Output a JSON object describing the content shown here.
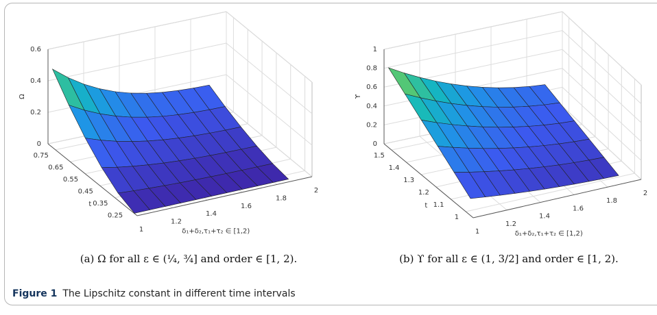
{
  "panels": [
    {
      "z_label": "Ω",
      "t_label": "t",
      "x_label": "δ₁+δ₂,τ₁+τ₂ ∈ [1,2)",
      "zlim": [
        0,
        0.6
      ],
      "tlim": [
        0.8,
        0.2
      ],
      "xlim": [
        1,
        2
      ],
      "zticks": [
        0,
        0.2,
        0.4,
        0.6
      ],
      "tticks": [
        0.75,
        0.65,
        0.55,
        0.45,
        0.35,
        0.25
      ],
      "xticks": [
        1,
        1.2,
        1.4,
        1.6,
        1.8,
        2
      ],
      "caption": "(a) Ω for all ε ∈ (¼, ¾] and order ∈ [1, 2)."
    },
    {
      "z_label": "ϒ",
      "t_label": "t",
      "x_label": "δ₁+δ₂,τ₁+τ₂ ∈ [1,2)",
      "zlim": [
        0,
        1
      ],
      "tlim": [
        1.55,
        0.95
      ],
      "xlim": [
        1,
        2
      ],
      "zticks": [
        0,
        0.2,
        0.4,
        0.6,
        0.8,
        1
      ],
      "tticks": [
        1.5,
        1.4,
        1.3,
        1.2,
        1.1,
        1
      ],
      "xticks": [
        1,
        1.2,
        1.4,
        1.6,
        1.8,
        2
      ],
      "caption": "(b) ϒ for all ε ∈ (1, 3/2] and order ∈ [1, 2)."
    }
  ],
  "figure": {
    "label": "Figure 1",
    "caption": "The Lipschitz constant in different time intervals"
  }
}
